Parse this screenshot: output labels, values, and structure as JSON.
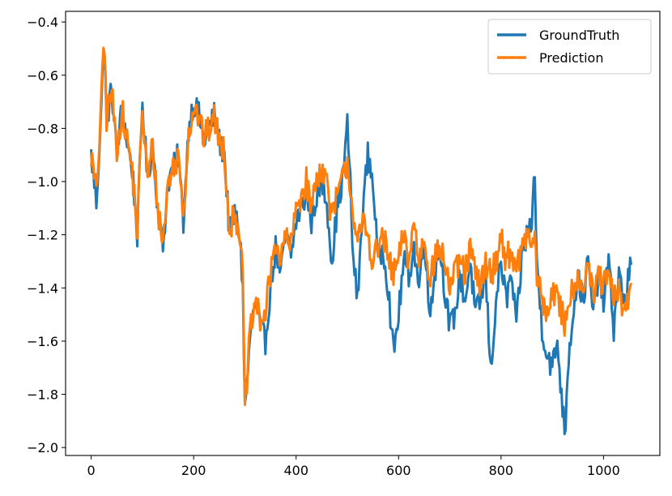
{
  "chart_data": {
    "type": "line",
    "title": "",
    "xlabel": "",
    "ylabel": "",
    "xlim": [
      -50,
      1110
    ],
    "ylim": [
      -2.03,
      -0.36
    ],
    "grid": false,
    "legend_position": "top-right",
    "x_ticks": [
      0,
      200,
      400,
      600,
      800,
      1000
    ],
    "x_tick_labels": [
      "0",
      "200",
      "400",
      "600",
      "800",
      "1000"
    ],
    "y_ticks": [
      -0.4,
      -0.6,
      -0.8,
      -1.0,
      -1.2,
      -1.4,
      -1.6,
      -1.8,
      -2.0
    ],
    "y_tick_labels": [
      "−0.4",
      "−0.6",
      "−0.8",
      "−1.0",
      "−1.2",
      "−1.4",
      "−1.6",
      "−1.8",
      "−2.0"
    ],
    "series": [
      {
        "name": "GroundTruth",
        "color": "#1f77b4",
        "x": [
          0,
          10,
          20,
          25,
          30,
          40,
          50,
          60,
          70,
          80,
          90,
          100,
          110,
          120,
          130,
          140,
          150,
          160,
          170,
          180,
          190,
          200,
          210,
          220,
          230,
          240,
          250,
          260,
          270,
          280,
          290,
          296,
          300,
          310,
          320,
          330,
          340,
          350,
          360,
          370,
          380,
          390,
          400,
          410,
          420,
          430,
          440,
          450,
          460,
          470,
          480,
          490,
          500,
          505,
          510,
          520,
          530,
          540,
          550,
          560,
          570,
          580,
          590,
          600,
          610,
          620,
          630,
          640,
          650,
          660,
          670,
          680,
          690,
          700,
          710,
          720,
          730,
          740,
          750,
          760,
          770,
          780,
          790,
          800,
          810,
          820,
          830,
          840,
          850,
          860,
          865,
          870,
          880,
          890,
          900,
          910,
          920,
          925,
          930,
          940,
          950,
          960,
          970,
          980,
          990,
          1000,
          1010,
          1020,
          1030,
          1040,
          1050,
          1055
        ],
        "y": [
          -0.9,
          -1.08,
          -0.72,
          -0.45,
          -0.78,
          -0.65,
          -0.9,
          -0.72,
          -0.85,
          -0.95,
          -1.2,
          -0.7,
          -1.0,
          -0.85,
          -1.1,
          -1.25,
          -1.0,
          -0.95,
          -0.9,
          -1.15,
          -0.8,
          -0.7,
          -0.75,
          -0.85,
          -0.8,
          -0.75,
          -0.85,
          -0.9,
          -1.2,
          -1.12,
          -1.2,
          -1.4,
          -1.86,
          -1.6,
          -1.45,
          -1.55,
          -1.6,
          -1.4,
          -1.25,
          -1.35,
          -1.2,
          -1.28,
          -1.15,
          -1.1,
          -1.05,
          -1.15,
          -1.05,
          -1.0,
          -1.08,
          -1.3,
          -1.1,
          -1.0,
          -0.79,
          -0.95,
          -1.25,
          -1.45,
          -1.1,
          -0.9,
          -1.0,
          -1.3,
          -1.25,
          -1.4,
          -1.65,
          -1.5,
          -1.3,
          -1.35,
          -1.25,
          -1.4,
          -1.2,
          -1.5,
          -1.35,
          -1.25,
          -1.4,
          -1.55,
          -1.5,
          -1.35,
          -1.45,
          -1.3,
          -1.5,
          -1.45,
          -1.35,
          -1.72,
          -1.45,
          -1.3,
          -1.45,
          -1.35,
          -1.55,
          -1.3,
          -1.2,
          -1.15,
          -0.95,
          -1.3,
          -1.55,
          -1.65,
          -1.7,
          -1.6,
          -1.85,
          -1.95,
          -1.7,
          -1.5,
          -1.35,
          -1.45,
          -1.3,
          -1.5,
          -1.35,
          -1.45,
          -1.3,
          -1.55,
          -1.35,
          -1.45,
          -1.35,
          -1.3
        ],
        "noise": 0.05
      },
      {
        "name": "Prediction",
        "color": "#ff7f0e",
        "x": [
          0,
          10,
          20,
          25,
          30,
          40,
          50,
          60,
          70,
          80,
          90,
          100,
          110,
          120,
          130,
          140,
          150,
          160,
          170,
          180,
          190,
          200,
          210,
          220,
          230,
          240,
          250,
          260,
          270,
          280,
          290,
          296,
          300,
          310,
          320,
          330,
          340,
          350,
          360,
          370,
          380,
          390,
          400,
          410,
          420,
          430,
          440,
          450,
          460,
          470,
          480,
          490,
          500,
          505,
          510,
          520,
          530,
          540,
          550,
          560,
          570,
          580,
          590,
          600,
          610,
          620,
          630,
          640,
          650,
          660,
          670,
          680,
          690,
          700,
          710,
          720,
          730,
          740,
          750,
          760,
          770,
          780,
          790,
          800,
          810,
          820,
          830,
          840,
          850,
          860,
          865,
          870,
          880,
          890,
          900,
          910,
          920,
          925,
          930,
          940,
          950,
          960,
          970,
          980,
          990,
          1000,
          1010,
          1020,
          1030,
          1040,
          1050,
          1055
        ],
        "y": [
          -0.9,
          -1.05,
          -0.7,
          -0.44,
          -0.76,
          -0.66,
          -0.88,
          -0.73,
          -0.84,
          -0.96,
          -1.18,
          -0.72,
          -1.0,
          -0.86,
          -1.1,
          -1.23,
          -1.0,
          -0.95,
          -0.9,
          -1.12,
          -0.82,
          -0.72,
          -0.76,
          -0.84,
          -0.8,
          -0.76,
          -0.84,
          -0.88,
          -1.18,
          -1.12,
          -1.18,
          -1.38,
          -1.86,
          -1.58,
          -1.45,
          -1.52,
          -1.5,
          -1.35,
          -1.22,
          -1.3,
          -1.2,
          -1.25,
          -1.1,
          -1.05,
          -1.0,
          -1.1,
          -0.98,
          -0.95,
          -1.0,
          -1.15,
          -1.05,
          -1.0,
          -0.92,
          -1.0,
          -1.1,
          -1.25,
          -1.15,
          -1.2,
          -1.3,
          -1.25,
          -1.2,
          -1.3,
          -1.35,
          -1.3,
          -1.2,
          -1.3,
          -1.15,
          -1.3,
          -1.2,
          -1.35,
          -1.3,
          -1.25,
          -1.3,
          -1.4,
          -1.35,
          -1.3,
          -1.35,
          -1.25,
          -1.35,
          -1.4,
          -1.3,
          -1.35,
          -1.3,
          -1.2,
          -1.3,
          -1.25,
          -1.35,
          -1.25,
          -1.2,
          -1.25,
          -1.2,
          -1.35,
          -1.45,
          -1.5,
          -1.4,
          -1.45,
          -1.5,
          -1.55,
          -1.45,
          -1.4,
          -1.35,
          -1.4,
          -1.3,
          -1.45,
          -1.35,
          -1.4,
          -1.35,
          -1.45,
          -1.4,
          -1.5,
          -1.45,
          -1.4
        ],
        "noise": 0.055
      }
    ]
  }
}
